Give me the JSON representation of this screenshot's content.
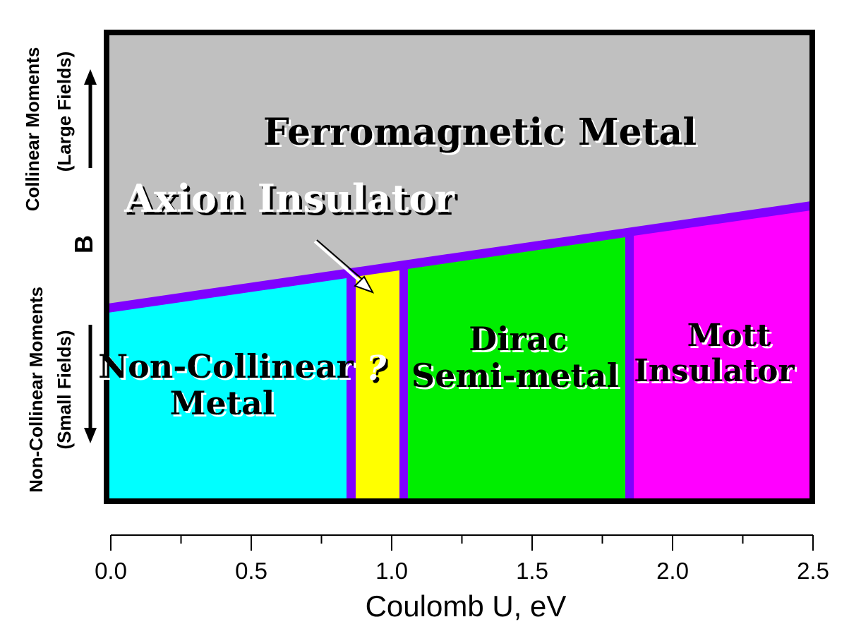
{
  "colors": {
    "ferromagnetic": "#c0c0c0",
    "non_collinear": "#00ffff",
    "axion_question": "#ffff00",
    "dirac": "#00ee00",
    "mott": "#ff00ff",
    "boundary": "#7f00ff",
    "frame": "#000000"
  },
  "regions": {
    "ferromagnetic_metal": "Ferromagnetic Metal",
    "axion_insulator": "Axion Insulator",
    "non_collinear_line1": "Non-Collinear",
    "non_collinear_line2": "Metal",
    "question_mark": "?",
    "dirac_line1": "Dirac",
    "dirac_line2": "Semi-metal",
    "mott_line1": "Mott",
    "mott_line2": "Insulator"
  },
  "y_axis": {
    "label": "B",
    "upper_line1": "Collinear Moments",
    "upper_line2": "(Large Fields)",
    "lower_line1": "Non-Collinear Moments",
    "lower_line2": "(Small Fields)"
  },
  "x_axis": {
    "label": "Coulomb U, eV",
    "min": 0.0,
    "max": 2.5,
    "major_ticks": [
      "0.0",
      "0.5",
      "1.0",
      "1.5",
      "2.0",
      "2.5"
    ],
    "minor_step": 0.25
  }
}
